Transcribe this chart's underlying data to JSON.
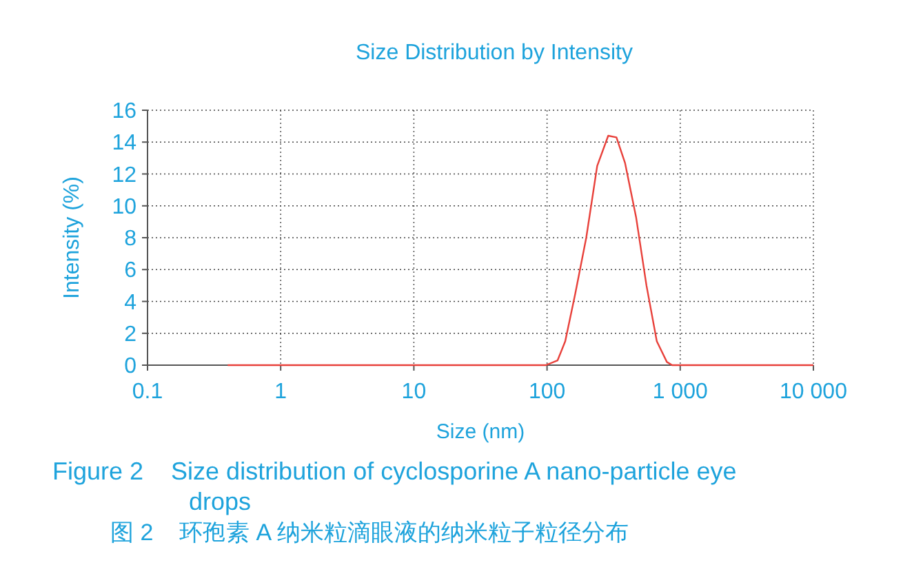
{
  "chart_data": {
    "type": "line",
    "title": "Size Distribution by Intensity",
    "xlabel": "Size (nm)",
    "ylabel": "Intensity (%)",
    "annotations": [
      "Figure 2    Size distribution of cyclosporine A nano-particle eye drops",
      "图 2    环孢素 A 纳米粒滴眼液的纳米粒子粒径分布"
    ],
    "log": "x",
    "grid": true,
    "marker": "none",
    "line_style": "solid",
    "xlim": [
      0.1,
      10000
    ],
    "xticks": [
      0.1,
      1,
      10,
      100,
      {
        "value": 1000,
        "label": "1 000"
      },
      {
        "value": 10000,
        "label": "10 000"
      }
    ],
    "ylim": [
      0,
      16
    ],
    "yticks": [
      0,
      2,
      4,
      6,
      8,
      10,
      12,
      14,
      16
    ],
    "series": [
      {
        "color": "#e8403a",
        "x": [
          0.4,
          1,
          10,
          98,
          120,
          137,
          163,
          197,
          238,
          288,
          332,
          385,
          466,
          558,
          667,
          794,
          870,
          10000
        ],
        "values": [
          0,
          0,
          0,
          0,
          0.3,
          1.5,
          4.5,
          8,
          12.5,
          14.4,
          14.3,
          12.7,
          9.3,
          5,
          1.5,
          0.2,
          0,
          0
        ]
      }
    ]
  }
}
